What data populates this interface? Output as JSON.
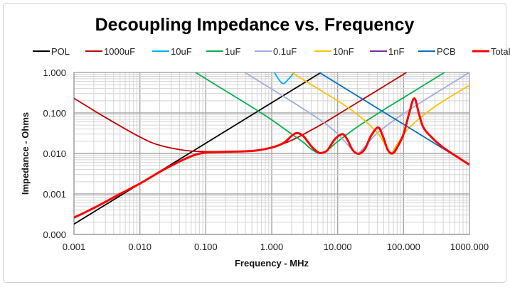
{
  "chart_data": {
    "type": "line",
    "title": "Decoupling Impedance vs. Frequency",
    "xlabel": "Frequency - MHz",
    "ylabel": "Impedance - Ohms",
    "xscale": "log",
    "yscale": "log",
    "xlim": [
      0.001,
      1000
    ],
    "ylim": [
      0.0001,
      1
    ],
    "x_ticks": [
      0.001,
      0.01,
      0.1,
      1,
      10,
      100,
      1000
    ],
    "x_tick_labels": [
      "0.001",
      "0.010",
      "0.100",
      "1.000",
      "10.000",
      "100.000",
      "1000.000"
    ],
    "y_ticks": [
      1,
      0.1,
      0.01,
      0.001,
      0.0001
    ],
    "y_tick_labels": [
      "1.000",
      "0.100",
      "0.010",
      "0.001",
      "0.000"
    ],
    "grid": true,
    "legend_position": "top",
    "series": [
      {
        "name": "POL",
        "color": "#000000",
        "points": [
          [
            0.001,
            0.00018
          ],
          [
            5.6,
            1.0
          ]
        ]
      },
      {
        "name": "1000uF",
        "color": "#c00000",
        "points": [
          [
            0.001,
            0.23
          ],
          [
            0.003,
            0.0775
          ],
          [
            0.01,
            0.0255
          ],
          [
            0.02,
            0.0159
          ],
          [
            0.05,
            0.0118
          ],
          [
            0.1,
            0.0111
          ],
          [
            0.2,
            0.011
          ],
          [
            0.5,
            0.0117
          ],
          [
            1,
            0.0142
          ],
          [
            2,
            0.0211
          ],
          [
            5,
            0.0463
          ],
          [
            10,
            0.0907
          ],
          [
            111,
            1.0
          ]
        ]
      },
      {
        "name": "10uF",
        "color": "#00b0f0",
        "points": [
          [
            1.1,
            1.0
          ],
          [
            1.3,
            0.65
          ],
          [
            1.5,
            0.53
          ],
          [
            1.75,
            0.65
          ],
          [
            2.2,
            1.0
          ]
        ]
      },
      {
        "name": "1uF",
        "color": "#00b050",
        "points": [
          [
            0.07,
            1.0
          ],
          [
            0.2,
            0.35
          ],
          [
            0.5,
            0.14
          ],
          [
            1,
            0.0676
          ],
          [
            2,
            0.0303
          ],
          [
            3,
            0.019
          ],
          [
            4,
            0.0127
          ],
          [
            5.4,
            0.01
          ],
          [
            7,
            0.0121
          ],
          [
            10,
            0.0196
          ],
          [
            20,
            0.0454
          ],
          [
            50,
            0.1196
          ],
          [
            100,
            0.239
          ],
          [
            418,
            1.0
          ]
        ]
      },
      {
        "name": "0.1uF",
        "color": "#a3acdc",
        "points": [
          [
            0.39,
            1.0
          ],
          [
            1,
            0.39
          ],
          [
            3,
            0.127
          ],
          [
            6,
            0.06
          ],
          [
            10,
            0.0307
          ],
          [
            15,
            0.0149
          ],
          [
            19.7,
            0.01
          ],
          [
            26,
            0.0149
          ],
          [
            40,
            0.0319
          ],
          [
            100,
            0.0961
          ],
          [
            300,
            0.3
          ],
          [
            1000,
            1.0
          ]
        ]
      },
      {
        "name": "10nF",
        "color": "#ffc000",
        "points": [
          [
            2,
            1.0
          ],
          [
            5,
            0.4
          ],
          [
            10,
            0.2
          ],
          [
            20,
            0.091
          ],
          [
            40,
            0.0325
          ],
          [
            55,
            0.0141
          ],
          [
            64.5,
            0.01
          ],
          [
            80,
            0.0168
          ],
          [
            120,
            0.0422
          ],
          [
            300,
            0.144
          ],
          [
            1000,
            0.48
          ]
        ]
      },
      {
        "name": "1nF",
        "color": "#7030a0",
        "points": []
      },
      {
        "name": "PCB",
        "color": "#0070c0",
        "points": [
          [
            5.25,
            1.0
          ],
          [
            1000,
            0.00525
          ]
        ]
      },
      {
        "name": "Total",
        "color": "#ff0000",
        "points": [
          [
            0.001,
            0.00026
          ],
          [
            0.002,
            0.00045
          ],
          [
            0.005,
            0.001
          ],
          [
            0.01,
            0.0018
          ],
          [
            0.02,
            0.0035
          ],
          [
            0.03,
            0.005
          ],
          [
            0.05,
            0.0075
          ],
          [
            0.07,
            0.0093
          ],
          [
            0.1,
            0.0105
          ],
          [
            0.2,
            0.011
          ],
          [
            0.5,
            0.0115
          ],
          [
            1,
            0.014
          ],
          [
            1.5,
            0.018
          ],
          [
            2,
            0.027
          ],
          [
            2.4,
            0.032
          ],
          [
            3,
            0.027
          ],
          [
            4,
            0.015
          ],
          [
            5,
            0.0108
          ],
          [
            5.7,
            0.0103
          ],
          [
            7,
            0.012
          ],
          [
            9,
            0.022
          ],
          [
            11.8,
            0.03
          ],
          [
            14,
            0.022
          ],
          [
            17,
            0.012
          ],
          [
            21,
            0.0098
          ],
          [
            26,
            0.013
          ],
          [
            32,
            0.027
          ],
          [
            41,
            0.044
          ],
          [
            48,
            0.028
          ],
          [
            58,
            0.012
          ],
          [
            68,
            0.01
          ],
          [
            80,
            0.014
          ],
          [
            100,
            0.03
          ],
          [
            120,
            0.09
          ],
          [
            145,
            0.23
          ],
          [
            170,
            0.1
          ],
          [
            197,
            0.046
          ],
          [
            250,
            0.028
          ],
          [
            400,
            0.014
          ],
          [
            1000,
            0.00525
          ]
        ]
      }
    ]
  }
}
